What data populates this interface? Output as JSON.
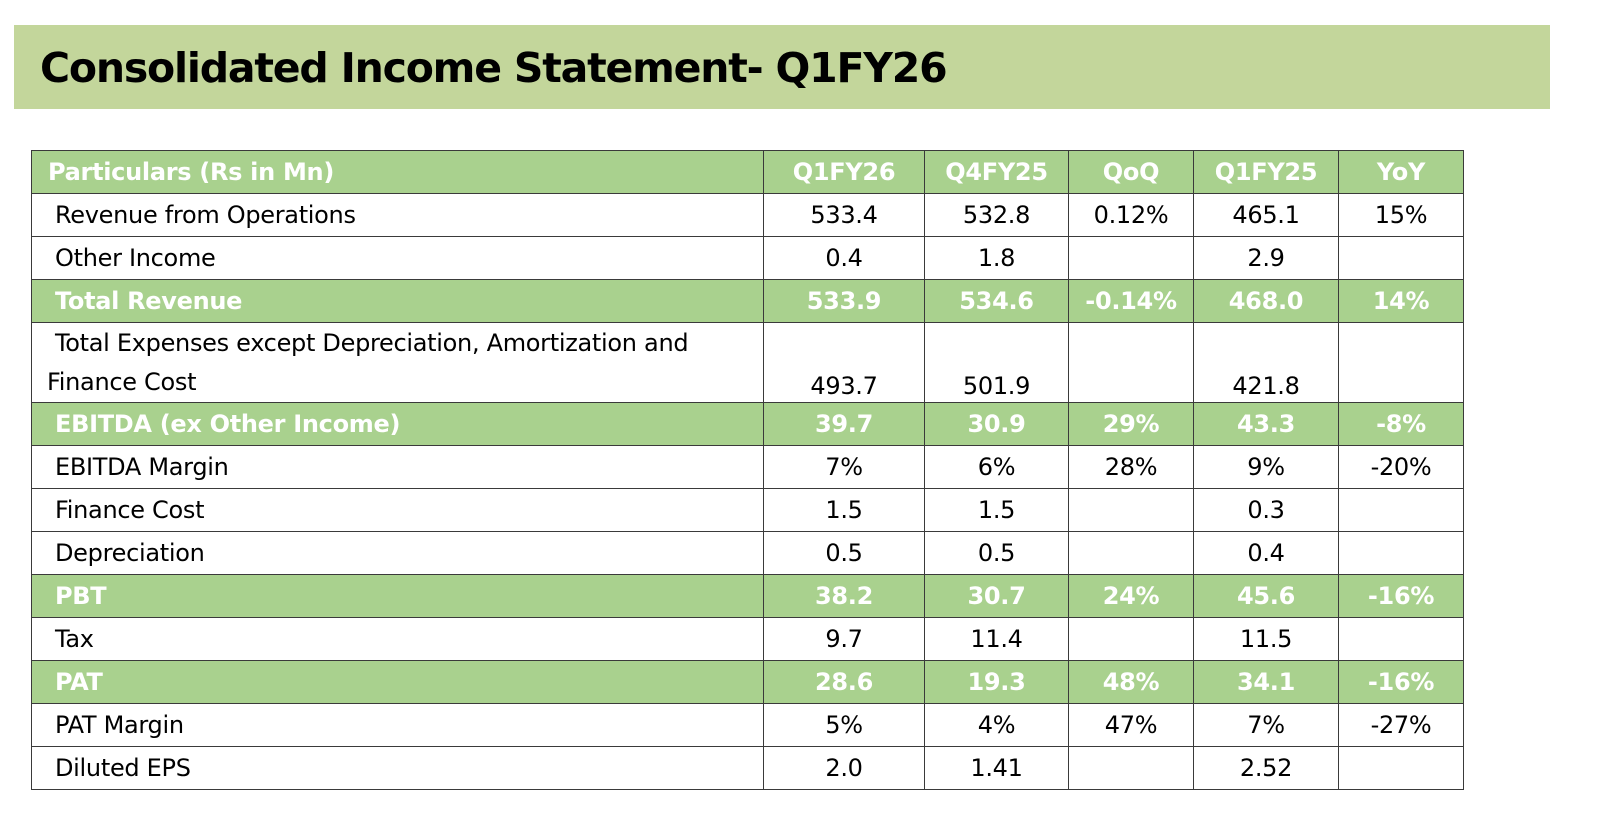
{
  "title": "Consolidated Income Statement- Q1FY26",
  "table": {
    "headers": [
      "Particulars (Rs in Mn)",
      "Q1FY26",
      "Q4FY25",
      "QoQ",
      "Q1FY25",
      "YoY"
    ],
    "rows": [
      {
        "label": "Revenue from Operations",
        "values": [
          "533.4",
          "532.8",
          "0.12%",
          "465.1",
          "15%"
        ],
        "highlight": false
      },
      {
        "label": "Other Income",
        "values": [
          "0.4",
          "1.8",
          "",
          "2.9",
          ""
        ],
        "highlight": false
      },
      {
        "label": "Total Revenue",
        "values": [
          "533.9",
          "534.6",
          "-0.14%",
          "468.0",
          "14%"
        ],
        "highlight": true
      },
      {
        "label": "Total Expenses except Depreciation, Amortization and Finance Cost",
        "values": [
          "493.7",
          "501.9",
          "",
          "421.8",
          ""
        ],
        "highlight": false
      },
      {
        "label": "EBITDA (ex Other Income)",
        "values": [
          "39.7",
          "30.9",
          "29%",
          "43.3",
          "-8%"
        ],
        "highlight": true
      },
      {
        "label": "EBITDA Margin",
        "values": [
          "7%",
          "6%",
          "28%",
          "9%",
          "-20%"
        ],
        "highlight": false
      },
      {
        "label": "Finance Cost",
        "values": [
          "1.5",
          "1.5",
          "",
          "0.3",
          ""
        ],
        "highlight": false
      },
      {
        "label": "Depreciation",
        "values": [
          "0.5",
          "0.5",
          "",
          "0.4",
          ""
        ],
        "highlight": false
      },
      {
        "label": "PBT",
        "values": [
          "38.2",
          "30.7",
          "24%",
          "45.6",
          "-16%"
        ],
        "highlight": true
      },
      {
        "label": "Tax",
        "values": [
          "9.7",
          "11.4",
          "",
          "11.5",
          ""
        ],
        "highlight": false
      },
      {
        "label": "PAT",
        "values": [
          "28.6",
          "19.3",
          "48%",
          "34.1",
          "-16%"
        ],
        "highlight": true
      },
      {
        "label": "PAT Margin",
        "values": [
          "5%",
          "4%",
          "47%",
          "7%",
          "-27%"
        ],
        "highlight": false
      },
      {
        "label": "Diluted EPS",
        "values": [
          "2.0",
          "1.41",
          "",
          "2.52",
          ""
        ],
        "highlight": false
      }
    ]
  },
  "colors": {
    "title_banner": "#c3d69b",
    "highlight_fill": "#a9d18e",
    "highlight_text": "#ffffff",
    "border": "#3a3a3a"
  }
}
